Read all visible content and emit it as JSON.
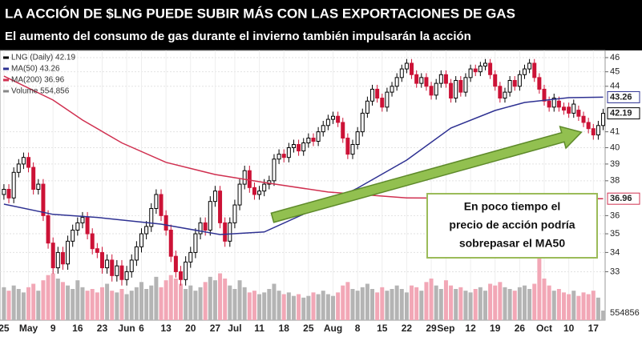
{
  "chart_data": {
    "type": "candlestick",
    "title": "LA ACCIÓN DE $LNG PUEDE SUBIR MÁS CON LAS EXPORTACIONES DE GAS",
    "subtitle": "El aumento del consumo  de gas durante  el invierno  también impulsarán  la acción",
    "legend": [
      "LNG (Daily) 42.19",
      "MA(50) 43.26",
      "MA(200) 36.96",
      "Volume 554,856"
    ],
    "legend_colors": [
      "#000000",
      "#2e3192",
      "#d03050",
      "#888888"
    ],
    "annotation": [
      "En poco tiempo el",
      "precio de acción podría",
      "sobrepasar el MA50"
    ],
    "annotation_border": "#9bbb59",
    "candles": {
      "open": [
        37.2,
        37.5,
        37.0,
        38.5,
        39.0,
        39.4,
        38.8,
        37.5,
        37.8,
        36.0,
        34.5,
        33.2,
        34.0,
        33.4,
        34.6,
        35.2,
        35.6,
        35.9,
        35.0,
        34.2,
        34.0,
        33.2,
        33.6,
        32.8,
        33.3,
        32.6,
        33.0,
        33.6,
        34.3,
        35.0,
        35.4,
        36.4,
        37.2,
        36.0,
        35.2,
        33.8,
        33.0,
        32.6,
        33.5,
        34.0,
        35.0,
        35.6,
        35.2,
        36.8,
        37.4,
        35.6,
        34.6,
        35.6,
        36.6,
        37.8,
        38.6,
        37.6,
        37.2,
        37.4,
        37.8,
        38.0,
        39.3,
        39.6,
        39.4,
        40.0,
        40.2,
        39.8,
        40.3,
        40.6,
        40.4,
        41.0,
        41.4,
        41.8,
        42.0,
        41.6,
        40.6,
        39.6,
        40.2,
        41.0,
        42.2,
        43.0,
        43.8,
        43.2,
        42.6,
        43.6,
        44.0,
        44.6,
        45.2,
        45.6,
        44.8,
        44.2,
        44.6,
        44.0,
        43.4,
        44.2,
        44.8,
        44.2,
        43.2,
        44.4,
        43.6,
        44.6,
        45.2,
        45.0,
        45.4,
        45.6,
        44.8,
        44.0,
        43.2,
        43.6,
        44.4,
        44.0,
        44.8,
        45.2,
        45.6,
        44.6,
        43.8,
        43.0,
        42.6,
        43.0,
        42.6,
        42.6,
        42.2,
        42.4,
        42.0,
        41.6,
        41.2,
        40.8,
        41.4
      ],
      "high": [
        37.8,
        37.8,
        38.8,
        39.3,
        39.7,
        39.7,
        39.1,
        38.1,
        38.1,
        36.3,
        34.8,
        34.3,
        34.3,
        34.9,
        35.5,
        35.9,
        36.2,
        36.2,
        35.3,
        34.5,
        34.3,
        33.9,
        33.9,
        33.6,
        33.6,
        33.3,
        33.9,
        34.6,
        35.3,
        35.7,
        36.7,
        37.5,
        37.5,
        36.3,
        35.5,
        34.1,
        33.3,
        33.8,
        34.3,
        35.3,
        35.9,
        35.9,
        37.1,
        37.7,
        37.7,
        35.9,
        35.9,
        36.9,
        38.1,
        38.9,
        38.9,
        37.9,
        37.7,
        38.1,
        38.3,
        39.6,
        39.9,
        39.9,
        40.3,
        40.5,
        40.5,
        40.6,
        40.9,
        40.9,
        41.3,
        41.7,
        42.1,
        42.3,
        42.3,
        41.9,
        40.9,
        40.5,
        41.3,
        42.5,
        43.3,
        44.1,
        44.1,
        43.5,
        43.9,
        44.3,
        44.9,
        45.5,
        45.9,
        45.9,
        45.1,
        44.9,
        44.9,
        44.3,
        44.5,
        45.1,
        45.1,
        44.5,
        44.7,
        44.7,
        44.9,
        45.5,
        45.5,
        45.7,
        45.9,
        45.9,
        45.1,
        44.3,
        43.9,
        44.7,
        44.7,
        45.1,
        45.5,
        45.9,
        45.9,
        44.9,
        44.1,
        43.3,
        43.5,
        43.3,
        42.9,
        42.9,
        43.1,
        42.7,
        42.3,
        41.9,
        41.5,
        41.7,
        42.49
      ],
      "low": [
        36.9,
        36.7,
        36.7,
        38.2,
        38.7,
        38.5,
        37.2,
        37.2,
        35.7,
        34.2,
        32.9,
        32.9,
        33.1,
        33.1,
        34.3,
        34.9,
        35.3,
        34.7,
        33.9,
        33.7,
        32.9,
        32.9,
        32.5,
        32.5,
        32.3,
        32.3,
        32.7,
        33.3,
        34.0,
        34.7,
        35.1,
        36.1,
        35.7,
        34.9,
        33.5,
        32.7,
        32.3,
        32.3,
        33.2,
        33.7,
        34.7,
        34.9,
        34.9,
        36.5,
        35.3,
        34.3,
        34.3,
        35.3,
        36.3,
        37.5,
        37.3,
        36.9,
        36.9,
        37.1,
        37.5,
        37.7,
        39.0,
        39.1,
        39.1,
        39.7,
        39.5,
        39.5,
        40.0,
        40.1,
        40.1,
        40.7,
        41.1,
        41.5,
        41.3,
        40.3,
        39.3,
        39.3,
        39.9,
        40.7,
        41.9,
        42.7,
        42.9,
        42.3,
        42.3,
        43.3,
        43.7,
        44.3,
        44.9,
        44.5,
        43.9,
        43.9,
        43.7,
        43.1,
        43.1,
        43.9,
        43.9,
        42.9,
        42.9,
        43.3,
        43.3,
        44.3,
        44.7,
        44.7,
        45.1,
        44.5,
        43.7,
        42.9,
        42.9,
        43.3,
        43.7,
        43.7,
        44.5,
        44.9,
        44.3,
        43.5,
        42.7,
        42.3,
        42.3,
        42.3,
        42.1,
        41.9,
        41.9,
        41.7,
        41.3,
        40.9,
        40.5,
        40.5,
        41.1
      ],
      "close": [
        37.5,
        37.0,
        38.5,
        39.0,
        39.4,
        38.8,
        37.5,
        37.8,
        36.0,
        34.5,
        33.2,
        34.0,
        33.4,
        34.6,
        35.2,
        35.6,
        35.9,
        35.0,
        34.2,
        34.0,
        33.2,
        33.6,
        32.8,
        33.3,
        32.6,
        33.0,
        33.6,
        34.3,
        35.0,
        35.4,
        36.4,
        37.2,
        36.0,
        35.2,
        33.8,
        33.0,
        32.6,
        33.5,
        34.0,
        35.0,
        35.6,
        35.2,
        36.8,
        37.4,
        35.6,
        34.6,
        35.6,
        36.6,
        37.8,
        38.6,
        37.6,
        37.2,
        37.4,
        37.8,
        38.0,
        39.3,
        39.6,
        39.4,
        40.0,
        40.2,
        39.8,
        40.3,
        40.6,
        40.4,
        41.0,
        41.4,
        41.8,
        42.0,
        41.6,
        40.6,
        39.6,
        40.2,
        41.0,
        42.2,
        43.0,
        43.8,
        43.2,
        42.6,
        43.6,
        44.0,
        44.6,
        45.2,
        45.6,
        44.8,
        44.2,
        44.6,
        44.0,
        43.4,
        44.2,
        44.8,
        44.2,
        43.2,
        44.4,
        43.6,
        44.6,
        45.2,
        45.0,
        45.4,
        45.6,
        44.8,
        44.0,
        43.2,
        43.6,
        44.4,
        44.0,
        44.8,
        45.2,
        45.6,
        44.6,
        43.8,
        43.0,
        42.6,
        43.2,
        42.6,
        42.4,
        42.2,
        42.8,
        42.0,
        41.6,
        41.2,
        40.8,
        41.4,
        42.19
      ]
    },
    "up_color": "#000000",
    "down_color": "#cc1236",
    "ma50": {
      "x": [
        0,
        10,
        19,
        32,
        44,
        53,
        63,
        72,
        82,
        91,
        100,
        106,
        115,
        122
      ],
      "values": [
        36.65,
        36.07,
        35.9,
        35.53,
        34.96,
        35.1,
        36.33,
        37.57,
        39.24,
        41.24,
        42.38,
        42.91,
        43.23,
        43.26
      ],
      "color": "#2e3192"
    },
    "ma200": {
      "x": [
        0,
        10,
        16,
        24,
        33,
        43,
        53,
        66,
        82,
        107,
        122
      ],
      "values": [
        44.7,
        43.07,
        41.75,
        40.3,
        39.1,
        38.37,
        37.9,
        37.34,
        37.0,
        36.97,
        36.96
      ],
      "color": "#d03050"
    },
    "volume": {
      "values": [
        1900000,
        1700000,
        2000000,
        1800000,
        1600000,
        1900000,
        2100000,
        1700000,
        2300000,
        2600000,
        2700000,
        2400000,
        2200000,
        2000000,
        1800000,
        2300000,
        1900000,
        1700000,
        1800000,
        1600000,
        1900000,
        2100000,
        1700000,
        1600000,
        1800000,
        1500000,
        1700000,
        1900000,
        2200000,
        1800000,
        2000000,
        2500000,
        1900000,
        2300000,
        2600000,
        2400000,
        2100000,
        1800000,
        2000000,
        1700000,
        1900000,
        2200000,
        2500000,
        2300000,
        2700000,
        2400000,
        2000000,
        1800000,
        2300000,
        1900000,
        1600000,
        1700000,
        1500000,
        1600000,
        1800000,
        2100000,
        1700000,
        1500000,
        1600000,
        1400000,
        1500000,
        1300000,
        1400000,
        1600000,
        1500000,
        1700000,
        1500000,
        1400000,
        1600000,
        2000000,
        2200000,
        1800000,
        1700000,
        1900000,
        2100000,
        1800000,
        1600000,
        1900000,
        1700000,
        1800000,
        2000000,
        1800000,
        1600000,
        2000000,
        1900000,
        1700000,
        2200000,
        2400000,
        2000000,
        1800000,
        2300000,
        2000000,
        1800000,
        1900000,
        1700000,
        1600000,
        1800000,
        1900000,
        1700000,
        2100000,
        2000000,
        2200000,
        1900000,
        1800000,
        1700000,
        1900000,
        2000000,
        1800000,
        2100000,
        6000000,
        2400000,
        2000000,
        1700000,
        1800000,
        1600000,
        1500000,
        1700000,
        1400000,
        1600000,
        1500000,
        1700000,
        1300000,
        554856
      ],
      "up_color": "#b4b4b4",
      "down_color": "#f2a7b6"
    },
    "volume_lim": [
      0,
      6000000
    ],
    "ylim": [
      30.8,
      46.4
    ],
    "ylog": true,
    "yticks": [
      46,
      45,
      44,
      41,
      40,
      39,
      38,
      36,
      35,
      34,
      33
    ],
    "xlim": [
      -0.8,
      122.4
    ],
    "xticks": [
      {
        "value": 0,
        "label": "25"
      },
      {
        "value": 5,
        "label": "May"
      },
      {
        "value": 10,
        "label": "9"
      },
      {
        "value": 15,
        "label": "16"
      },
      {
        "value": 20,
        "label": "23"
      },
      {
        "value": 25,
        "label": "Jun"
      },
      {
        "value": 28,
        "label": "6"
      },
      {
        "value": 33,
        "label": "13"
      },
      {
        "value": 38,
        "label": "20"
      },
      {
        "value": 43,
        "label": "27"
      },
      {
        "value": 47,
        "label": "Jul"
      },
      {
        "value": 52,
        "label": "11"
      },
      {
        "value": 57,
        "label": "18"
      },
      {
        "value": 62,
        "label": "25"
      },
      {
        "value": 67,
        "label": "Aug"
      },
      {
        "value": 72,
        "label": "8"
      },
      {
        "value": 77,
        "label": "15"
      },
      {
        "value": 82,
        "label": "22"
      },
      {
        "value": 87,
        "label": "29"
      },
      {
        "value": 90,
        "label": "Sep"
      },
      {
        "value": 95,
        "label": "12"
      },
      {
        "value": 100,
        "label": "19"
      },
      {
        "value": 105,
        "label": "26"
      },
      {
        "value": 110,
        "label": "Oct"
      },
      {
        "value": 115,
        "label": "10"
      },
      {
        "value": 120,
        "label": "17"
      }
    ],
    "grid": true
  }
}
